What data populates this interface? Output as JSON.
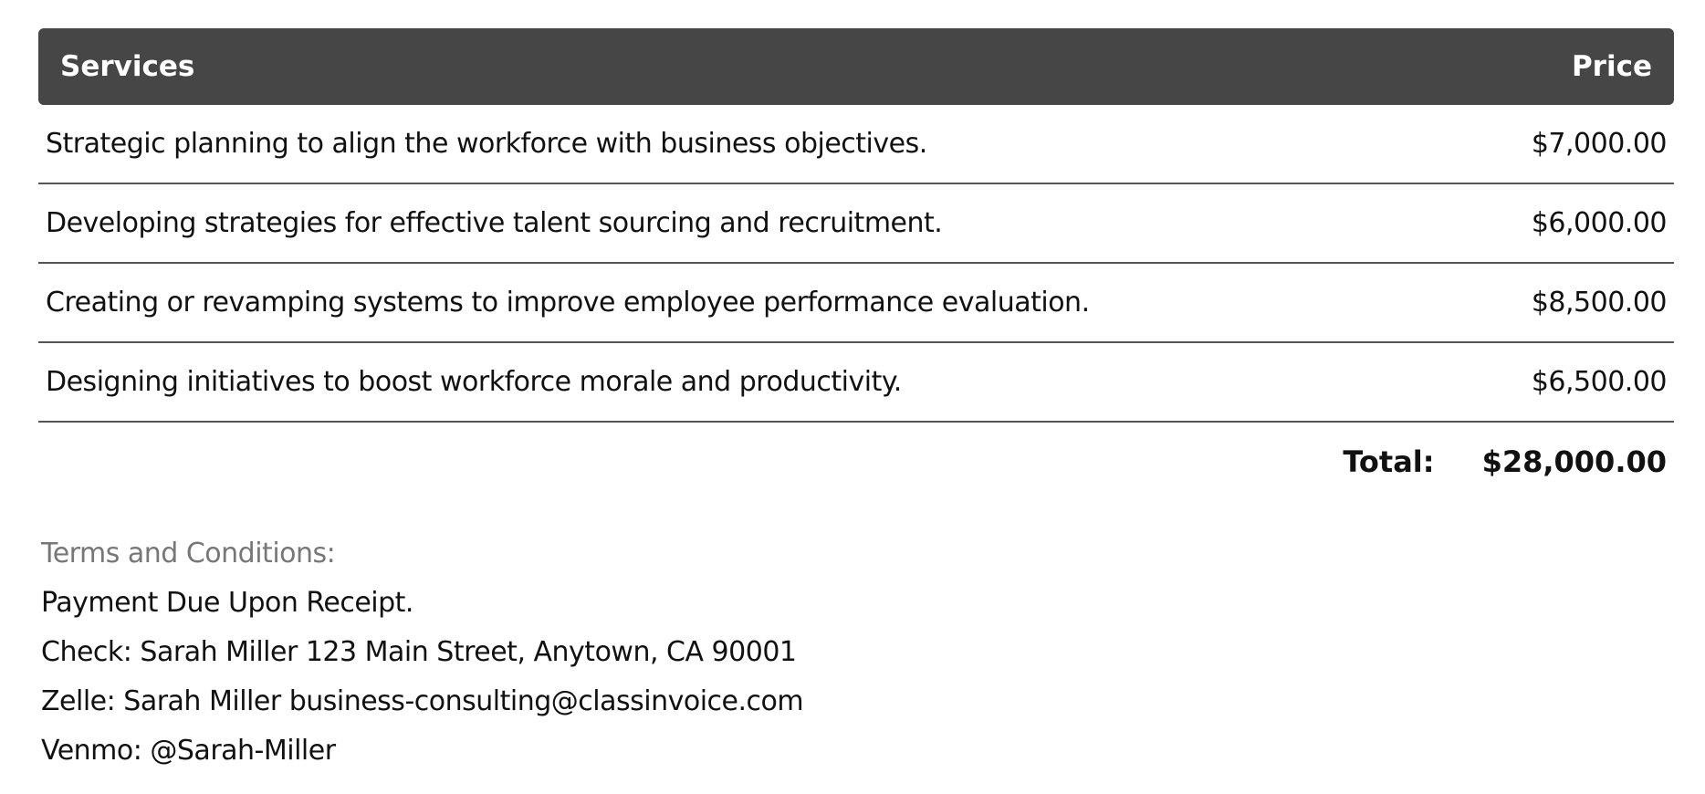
{
  "table": {
    "headers": {
      "service": "Services",
      "price": "Price"
    },
    "rows": [
      {
        "service": "Strategic planning to align the workforce with business objectives.",
        "price": "$7,000.00"
      },
      {
        "service": "Developing strategies for effective talent sourcing and recruitment.",
        "price": "$6,000.00"
      },
      {
        "service": "Creating or revamping systems to improve employee performance evaluation.",
        "price": "$8,500.00"
      },
      {
        "service": "Designing initiatives to boost workforce morale and productivity.",
        "price": "$6,500.00"
      }
    ],
    "total_label": "Total:",
    "total_value": "$28,000.00"
  },
  "terms": {
    "heading": "Terms and Conditions:",
    "lines": [
      "Payment Due Upon Receipt.",
      "Check: Sarah Miller 123 Main Street, Anytown, CA 90001",
      "Zelle: Sarah Miller business-consulting@classinvoice.com",
      "Venmo: @Sarah-Miller"
    ]
  },
  "colors": {
    "header_bg": "#464646",
    "terms_heading": "#777777"
  }
}
